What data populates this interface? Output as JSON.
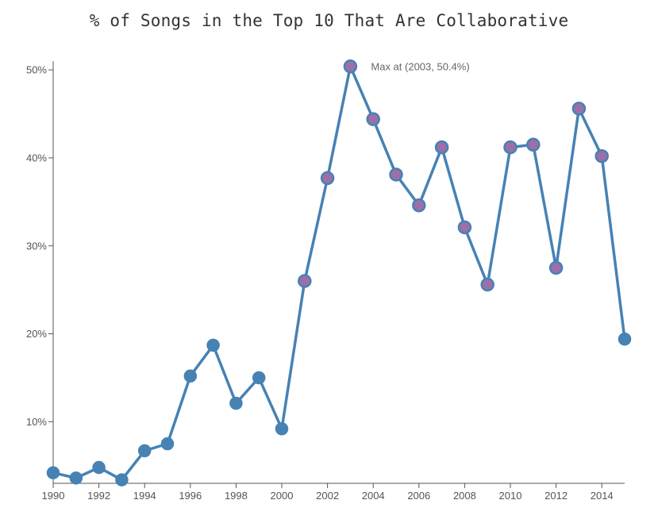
{
  "chart_data": {
    "type": "line",
    "title": "% of Songs in the Top 10 That Are Collaborative",
    "xlabel": "",
    "ylabel": "",
    "x": [
      1990,
      1991,
      1992,
      1993,
      1994,
      1995,
      1996,
      1997,
      1998,
      1999,
      2000,
      2001,
      2002,
      2003,
      2004,
      2005,
      2006,
      2007,
      2008,
      2009,
      2010,
      2011,
      2012,
      2013,
      2014,
      2015
    ],
    "values": [
      4.2,
      3.6,
      4.8,
      3.4,
      6.7,
      7.5,
      15.2,
      18.7,
      12.1,
      15.0,
      9.2,
      26.0,
      37.7,
      50.4,
      44.4,
      38.1,
      34.6,
      41.2,
      32.1,
      25.6,
      41.2,
      41.5,
      27.5,
      45.6,
      40.2,
      19.4
    ],
    "x_ticks": [
      "1990",
      "1992",
      "1994",
      "1996",
      "1998",
      "2000",
      "2002",
      "2004",
      "2006",
      "2008",
      "2010",
      "2012",
      "2014"
    ],
    "x_tick_values": [
      1990,
      1992,
      1994,
      1996,
      1998,
      2000,
      2002,
      2004,
      2006,
      2008,
      2010,
      2012,
      2014
    ],
    "y_ticks": [
      "10%",
      "20%",
      "30%",
      "40%",
      "50%"
    ],
    "y_tick_values": [
      10,
      20,
      30,
      40,
      50
    ],
    "xlim": [
      1990,
      2015
    ],
    "ylim": [
      3,
      51
    ],
    "grid": false,
    "annotation": {
      "text": "Max at (2003, 50.4%)",
      "x": 2003,
      "y": 50.4
    },
    "colors": {
      "line": "#4682b4",
      "marker": "#4682b4",
      "highlight": "#9c6fa8",
      "axis": "#555555"
    }
  }
}
